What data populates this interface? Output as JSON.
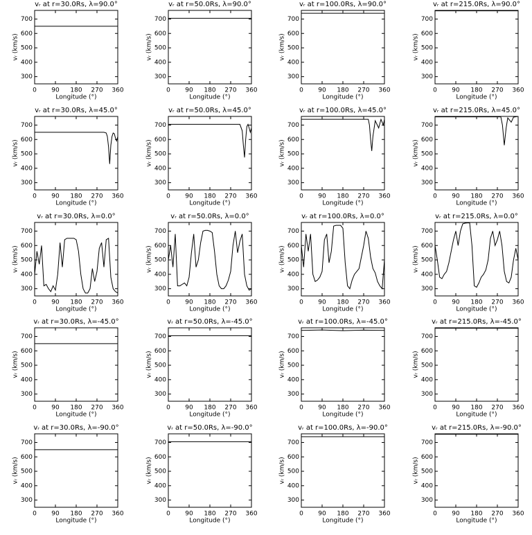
{
  "chart_data": [
    {
      "type": "line",
      "title": "vᵣ at r=30.0Rs, λ=90.0°",
      "x_label": "Longitude (°)",
      "y_label": "vᵣ (km/s)",
      "color": "#000000",
      "xlim": [
        0,
        360
      ],
      "ylim": [
        250,
        760
      ],
      "xticks": [
        0,
        90,
        180,
        270,
        360
      ],
      "yticks": [
        300,
        400,
        500,
        600,
        700
      ],
      "x": [
        0,
        360
      ],
      "values": [
        650,
        650
      ]
    },
    {
      "type": "line",
      "title": "vᵣ at r=50.0Rs, λ=90.0°",
      "x_label": "Longitude (°)",
      "y_label": "vᵣ (km/s)",
      "color": "#000000",
      "xlim": [
        0,
        360
      ],
      "ylim": [
        250,
        760
      ],
      "xticks": [
        0,
        90,
        180,
        270,
        360
      ],
      "yticks": [
        300,
        400,
        500,
        600,
        700
      ],
      "x": [
        0,
        360
      ],
      "values": [
        705,
        705
      ]
    },
    {
      "type": "line",
      "title": "vᵣ at r=100.0Rs, λ=90.0°",
      "x_label": "Longitude (°)",
      "y_label": "vᵣ (km/s)",
      "color": "#000000",
      "xlim": [
        0,
        360
      ],
      "ylim": [
        250,
        760
      ],
      "xticks": [
        0,
        90,
        180,
        270,
        360
      ],
      "yticks": [
        300,
        400,
        500,
        600,
        700
      ],
      "x": [
        0,
        360
      ],
      "values": [
        740,
        740
      ]
    },
    {
      "type": "line",
      "title": "vᵣ at r=215.0Rs, λ=90.0°",
      "x_label": "Longitude (°)",
      "y_label": "vᵣ (km/s)",
      "color": "#000000",
      "xlim": [
        0,
        360
      ],
      "ylim": [
        250,
        760
      ],
      "xticks": [
        0,
        90,
        180,
        270,
        360
      ],
      "yticks": [
        300,
        400,
        500,
        600,
        700
      ],
      "x": [
        0,
        360
      ],
      "values": [
        757,
        757
      ]
    },
    {
      "type": "line",
      "title": "vᵣ at r=30.0Rs, λ=45.0°",
      "x_label": "Longitude (°)",
      "y_label": "vᵣ (km/s)",
      "color": "#000000",
      "xlim": [
        0,
        360
      ],
      "ylim": [
        250,
        760
      ],
      "xticks": [
        0,
        90,
        180,
        270,
        360
      ],
      "yticks": [
        300,
        400,
        500,
        600,
        700
      ],
      "x": [
        0,
        300,
        310,
        315,
        320,
        325,
        330,
        335,
        340,
        345,
        350,
        355,
        360
      ],
      "values": [
        650,
        650,
        645,
        620,
        550,
        430,
        560,
        620,
        645,
        640,
        610,
        590,
        620
      ]
    },
    {
      "type": "line",
      "title": "vᵣ at r=50.0Rs, λ=45.0°",
      "x_label": "Longitude (°)",
      "y_label": "vᵣ (km/s)",
      "color": "#000000",
      "xlim": [
        0,
        360
      ],
      "ylim": [
        250,
        760
      ],
      "xticks": [
        0,
        90,
        180,
        270,
        360
      ],
      "yticks": [
        300,
        400,
        500,
        600,
        700
      ],
      "x": [
        0,
        310,
        320,
        325,
        330,
        335,
        340,
        345,
        350,
        355,
        360
      ],
      "values": [
        705,
        705,
        660,
        560,
        475,
        600,
        690,
        705,
        680,
        650,
        680
      ]
    },
    {
      "type": "line",
      "title": "vᵣ at r=100.0Rs, λ=45.0°",
      "x_label": "Longitude (°)",
      "y_label": "vᵣ (km/s)",
      "color": "#000000",
      "xlim": [
        0,
        360
      ],
      "ylim": [
        250,
        760
      ],
      "xticks": [
        0,
        90,
        180,
        270,
        360
      ],
      "yticks": [
        300,
        400,
        500,
        600,
        700
      ],
      "x": [
        0,
        290,
        295,
        300,
        305,
        310,
        320,
        335,
        345,
        355,
        360
      ],
      "values": [
        740,
        740,
        700,
        600,
        520,
        620,
        730,
        680,
        740,
        700,
        740
      ]
    },
    {
      "type": "line",
      "title": "vᵣ at r=215.0Rs, λ=45.0°",
      "x_label": "Longitude (°)",
      "y_label": "vᵣ (km/s)",
      "color": "#000000",
      "xlim": [
        0,
        360
      ],
      "ylim": [
        250,
        760
      ],
      "xticks": [
        0,
        90,
        180,
        270,
        360
      ],
      "yticks": [
        300,
        400,
        500,
        600,
        700
      ],
      "x": [
        0,
        285,
        292,
        300,
        308,
        315,
        330,
        340,
        360
      ],
      "values": [
        757,
        757,
        700,
        560,
        680,
        750,
        720,
        755,
        760
      ]
    },
    {
      "type": "line",
      "title": "vᵣ at r=30.0Rs, λ=0.0°",
      "x_label": "Longitude (°)",
      "y_label": "vᵣ (km/s)",
      "color": "#000000",
      "xlim": [
        0,
        360
      ],
      "ylim": [
        250,
        760
      ],
      "xticks": [
        0,
        90,
        180,
        270,
        360
      ],
      "yticks": [
        300,
        400,
        500,
        600,
        700
      ],
      "x": [
        0,
        10,
        20,
        30,
        40,
        50,
        60,
        70,
        80,
        90,
        100,
        110,
        120,
        130,
        140,
        150,
        160,
        170,
        180,
        190,
        200,
        210,
        220,
        230,
        240,
        250,
        260,
        270,
        280,
        290,
        300,
        310,
        320,
        330,
        340,
        350,
        360
      ],
      "values": [
        400,
        560,
        470,
        600,
        320,
        330,
        300,
        280,
        320,
        290,
        400,
        620,
        450,
        640,
        650,
        650,
        650,
        650,
        640,
        560,
        400,
        300,
        270,
        270,
        300,
        440,
        350,
        420,
        580,
        620,
        450,
        640,
        650,
        380,
        300,
        280,
        270
      ]
    },
    {
      "type": "line",
      "title": "vᵣ at r=50.0Rs, λ=0.0°",
      "x_label": "Longitude (°)",
      "y_label": "vᵣ (km/s)",
      "color": "#000000",
      "xlim": [
        0,
        360
      ],
      "ylim": [
        250,
        760
      ],
      "xticks": [
        0,
        90,
        180,
        270,
        360
      ],
      "yticks": [
        300,
        400,
        500,
        600,
        700
      ],
      "x": [
        0,
        10,
        20,
        30,
        40,
        50,
        60,
        70,
        80,
        90,
        100,
        110,
        120,
        130,
        140,
        150,
        160,
        170,
        180,
        190,
        200,
        210,
        220,
        230,
        240,
        250,
        260,
        270,
        280,
        290,
        300,
        310,
        320,
        330,
        340,
        350,
        360
      ],
      "values": [
        500,
        600,
        450,
        680,
        320,
        320,
        330,
        340,
        320,
        380,
        550,
        680,
        450,
        500,
        620,
        700,
        705,
        705,
        700,
        690,
        560,
        400,
        320,
        300,
        300,
        320,
        360,
        420,
        600,
        700,
        550,
        630,
        680,
        400,
        320,
        290,
        300
      ]
    },
    {
      "type": "line",
      "title": "vᵣ at r=100.0Rs, λ=0.0°",
      "x_label": "Longitude (°)",
      "y_label": "vᵣ (km/s)",
      "color": "#000000",
      "xlim": [
        0,
        360
      ],
      "ylim": [
        250,
        760
      ],
      "xticks": [
        0,
        90,
        180,
        270,
        360
      ],
      "yticks": [
        300,
        400,
        500,
        600,
        700
      ],
      "x": [
        0,
        10,
        20,
        30,
        40,
        50,
        60,
        70,
        80,
        90,
        100,
        110,
        120,
        130,
        140,
        150,
        160,
        170,
        180,
        190,
        200,
        210,
        220,
        230,
        240,
        250,
        260,
        270,
        280,
        290,
        300,
        310,
        320,
        330,
        340,
        350,
        360
      ],
      "values": [
        600,
        450,
        680,
        560,
        680,
        400,
        350,
        360,
        380,
        420,
        640,
        680,
        480,
        560,
        735,
        740,
        740,
        740,
        720,
        480,
        320,
        300,
        360,
        400,
        420,
        440,
        520,
        600,
        700,
        650,
        520,
        440,
        410,
        350,
        320,
        300,
        500
      ]
    },
    {
      "type": "line",
      "title": "vᵣ at r=215.0Rs, λ=0.0°",
      "x_label": "Longitude (°)",
      "y_label": "vᵣ (km/s)",
      "color": "#000000",
      "xlim": [
        0,
        360
      ],
      "ylim": [
        250,
        760
      ],
      "xticks": [
        0,
        90,
        180,
        270,
        360
      ],
      "yticks": [
        300,
        400,
        500,
        600,
        700
      ],
      "x": [
        0,
        10,
        20,
        30,
        40,
        50,
        60,
        70,
        80,
        90,
        100,
        110,
        120,
        130,
        140,
        150,
        160,
        170,
        180,
        190,
        200,
        210,
        220,
        230,
        240,
        250,
        260,
        270,
        280,
        290,
        300,
        310,
        320,
        330,
        340,
        350,
        360
      ],
      "values": [
        600,
        500,
        380,
        370,
        400,
        420,
        480,
        560,
        640,
        700,
        600,
        700,
        750,
        755,
        757,
        757,
        600,
        320,
        310,
        340,
        380,
        400,
        430,
        500,
        650,
        700,
        600,
        640,
        700,
        600,
        420,
        350,
        340,
        380,
        500,
        580,
        500
      ]
    },
    {
      "type": "line",
      "title": "vᵣ at r=30.0Rs, λ=-45.0°",
      "x_label": "Longitude (°)",
      "y_label": "vᵣ (km/s)",
      "color": "#000000",
      "xlim": [
        0,
        360
      ],
      "ylim": [
        250,
        760
      ],
      "xticks": [
        0,
        90,
        180,
        270,
        360
      ],
      "yticks": [
        300,
        400,
        500,
        600,
        700
      ],
      "x": [
        0,
        360
      ],
      "values": [
        650,
        650
      ]
    },
    {
      "type": "line",
      "title": "vᵣ at r=50.0Rs, λ=-45.0°",
      "x_label": "Longitude (°)",
      "y_label": "vᵣ (km/s)",
      "color": "#000000",
      "xlim": [
        0,
        360
      ],
      "ylim": [
        250,
        760
      ],
      "xticks": [
        0,
        90,
        180,
        270,
        360
      ],
      "yticks": [
        300,
        400,
        500,
        600,
        700
      ],
      "x": [
        0,
        360
      ],
      "values": [
        705,
        705
      ]
    },
    {
      "type": "line",
      "title": "vᵣ at r=100.0Rs, λ=-45.0°",
      "x_label": "Longitude (°)",
      "y_label": "vᵣ (km/s)",
      "color": "#000000",
      "xlim": [
        0,
        360
      ],
      "ylim": [
        250,
        760
      ],
      "xticks": [
        0,
        90,
        180,
        270,
        360
      ],
      "yticks": [
        300,
        400,
        500,
        600,
        700
      ],
      "x": [
        0,
        90,
        180,
        270,
        360
      ],
      "values": [
        742,
        745,
        740,
        744,
        742
      ]
    },
    {
      "type": "line",
      "title": "vᵣ at r=215.0Rs, λ=-45.0°",
      "x_label": "Longitude (°)",
      "y_label": "vᵣ (km/s)",
      "color": "#000000",
      "xlim": [
        0,
        360
      ],
      "ylim": [
        250,
        760
      ],
      "xticks": [
        0,
        90,
        180,
        270,
        360
      ],
      "yticks": [
        300,
        400,
        500,
        600,
        700
      ],
      "x": [
        0,
        360
      ],
      "values": [
        757,
        757
      ]
    },
    {
      "type": "line",
      "title": "vᵣ at r=30.0Rs, λ=-90.0°",
      "x_label": "Longitude (°)",
      "y_label": "vᵣ (km/s)",
      "color": "#000000",
      "xlim": [
        0,
        360
      ],
      "ylim": [
        250,
        760
      ],
      "xticks": [
        0,
        90,
        180,
        270,
        360
      ],
      "yticks": [
        300,
        400,
        500,
        600,
        700
      ],
      "x": [
        0,
        360
      ],
      "values": [
        650,
        650
      ]
    },
    {
      "type": "line",
      "title": "vᵣ at r=50.0Rs, λ=-90.0°",
      "x_label": "Longitude (°)",
      "y_label": "vᵣ (km/s)",
      "color": "#000000",
      "xlim": [
        0,
        360
      ],
      "ylim": [
        250,
        760
      ],
      "xticks": [
        0,
        90,
        180,
        270,
        360
      ],
      "yticks": [
        300,
        400,
        500,
        600,
        700
      ],
      "x": [
        0,
        360
      ],
      "values": [
        705,
        705
      ]
    },
    {
      "type": "line",
      "title": "vᵣ at r=100.0Rs, λ=-90.0°",
      "x_label": "Longitude (°)",
      "y_label": "vᵣ (km/s)",
      "color": "#000000",
      "xlim": [
        0,
        360
      ],
      "ylim": [
        250,
        760
      ],
      "xticks": [
        0,
        90,
        180,
        270,
        360
      ],
      "yticks": [
        300,
        400,
        500,
        600,
        700
      ],
      "x": [
        0,
        360
      ],
      "values": [
        740,
        740
      ]
    },
    {
      "type": "line",
      "title": "vᵣ at r=215.0Rs, λ=-90.0°",
      "x_label": "Longitude (°)",
      "y_label": "vᵣ (km/s)",
      "color": "#000000",
      "xlim": [
        0,
        360
      ],
      "ylim": [
        250,
        760
      ],
      "xticks": [
        0,
        90,
        180,
        270,
        360
      ],
      "yticks": [
        300,
        400,
        500,
        600,
        700
      ],
      "x": [
        0,
        360
      ],
      "values": [
        757,
        757
      ]
    }
  ]
}
